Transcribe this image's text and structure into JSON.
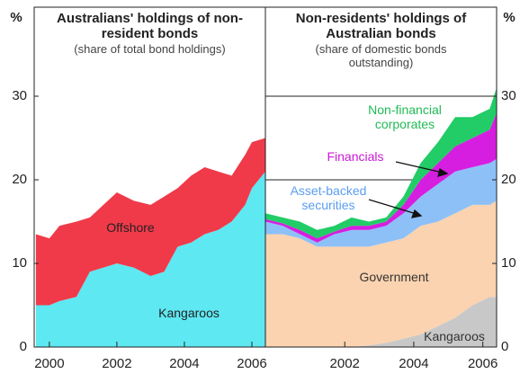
{
  "chart_data": [
    {
      "type": "area",
      "title": "Australians' holdings of non-resident bonds",
      "subtitle": "(share of total bond holdings)",
      "y_label": "%",
      "x": [
        1999.6,
        2000.0,
        2000.3,
        2000.8,
        2001.2,
        2001.6,
        2002.0,
        2002.5,
        2003.0,
        2003.4,
        2003.8,
        2004.2,
        2004.6,
        2005.0,
        2005.4,
        2005.8,
        2006.0,
        2006.4
      ],
      "series": [
        {
          "name": "Kangaroos",
          "color": "#5ee8f2",
          "values": [
            5,
            5,
            5.5,
            6,
            9,
            9.5,
            10,
            9.5,
            8.5,
            9,
            12,
            12.5,
            13.5,
            14,
            15,
            17,
            19,
            21
          ]
        },
        {
          "name": "Offshore",
          "color": "#f03a4a",
          "values": [
            8.5,
            8,
            9,
            9,
            6.5,
            7.5,
            8.5,
            8,
            8.5,
            9,
            7,
            8,
            8,
            7,
            5.5,
            6,
            5.5,
            4
          ]
        }
      ],
      "xlim": [
        1999.55,
        2006.4
      ],
      "xticks": [
        2000,
        2002,
        2004,
        2006
      ],
      "ylim": [
        0,
        30
      ],
      "yticks": [
        0,
        10,
        20,
        30
      ],
      "grid": false,
      "stacked": true
    },
    {
      "type": "area",
      "title": "Non-residents' holdings of Australian bonds",
      "subtitle": "(share of domestic bonds outstanding)",
      "y_label": "%",
      "x": [
        1999.7,
        2000.2,
        2000.7,
        2001.2,
        2001.7,
        2002.2,
        2002.7,
        2003.2,
        2003.7,
        2004.2,
        2004.7,
        2005.2,
        2005.7,
        2006.2,
        2006.4
      ],
      "series": [
        {
          "name": "Kangaroos",
          "color": "#c8c8c8",
          "values": [
            0,
            0,
            0,
            0,
            0,
            0,
            0.2,
            0.5,
            1,
            1.5,
            2.5,
            3.5,
            5,
            6,
            6
          ]
        },
        {
          "name": "Government",
          "color": "#fbd3b0",
          "values": [
            13.5,
            13.5,
            13,
            12,
            12,
            12,
            11.8,
            12,
            12,
            13,
            12.5,
            12.5,
            12,
            11,
            11.5
          ]
        },
        {
          "name": "Asset-backed securities",
          "color": "#8ec0f8",
          "values": [
            1.5,
            1,
            0.5,
            0.5,
            1.5,
            2,
            2,
            2,
            3,
            3.5,
            4.5,
            5,
            4.5,
            5,
            5
          ]
        },
        {
          "name": "Financials",
          "color": "#d61ee0",
          "values": [
            0.3,
            0.3,
            0.5,
            0.5,
            0.3,
            0.5,
            0.5,
            0.5,
            1,
            2,
            2.5,
            3,
            3.5,
            4,
            5.5
          ]
        },
        {
          "name": "Non-financial corporates",
          "color": "#22cc66",
          "values": [
            0.7,
            0.7,
            1,
            1,
            0.7,
            1,
            0.5,
            0.5,
            1,
            2,
            2.5,
            3.5,
            2.5,
            2.5,
            3
          ]
        }
      ],
      "xlim": [
        1999.7,
        2006.4
      ],
      "xticks": [
        2002,
        2004,
        2006
      ],
      "ylim": [
        0,
        30
      ],
      "yticks": [
        0,
        10,
        20,
        30
      ],
      "grid": true,
      "stacked": true
    }
  ]
}
